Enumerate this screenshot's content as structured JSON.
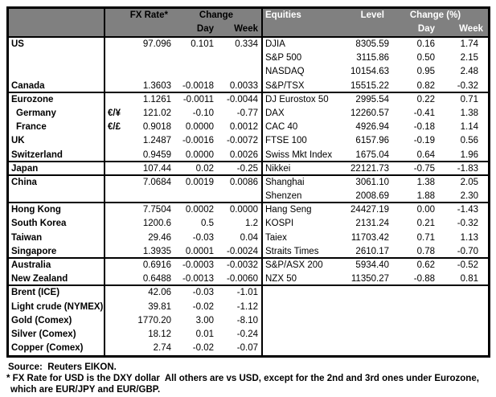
{
  "colors": {
    "header_bg": "#808080",
    "header_left_text": "#000000",
    "header_right_text": "#ffffff",
    "border": "#000000"
  },
  "header": {
    "left": {
      "fx_rate": "FX Rate*",
      "change": "Change",
      "day": "Day",
      "week": "Week"
    },
    "right": {
      "equities": "Equities",
      "level": "Level",
      "change_pct": "Change (%)",
      "day": "Day",
      "week": "Week"
    }
  },
  "rows": [
    {
      "label": "US",
      "sym": "",
      "fx": "97.096",
      "fx_day": "0.101",
      "fx_week": "0.334",
      "eq": "DJIA",
      "level": "8305.59",
      "eq_day": "0.16",
      "eq_week": "1.74",
      "indent": false,
      "sep": false
    },
    {
      "label": "",
      "sym": "",
      "fx": "",
      "fx_day": "",
      "fx_week": "",
      "eq": "S&P 500",
      "level": "3115.86",
      "eq_day": "0.50",
      "eq_week": "2.15",
      "indent": false,
      "sep": false
    },
    {
      "label": "",
      "sym": "",
      "fx": "",
      "fx_day": "",
      "fx_week": "",
      "eq": "NASDAQ",
      "level": "10154.63",
      "eq_day": "0.95",
      "eq_week": "2.48",
      "indent": false,
      "sep": false
    },
    {
      "label": "Canada",
      "sym": "",
      "fx": "1.3603",
      "fx_day": "-0.0018",
      "fx_week": "0.0033",
      "eq": "S&P/TSX",
      "level": "15515.22",
      "eq_day": "0.82",
      "eq_week": "-0.32",
      "indent": false,
      "sep": true
    },
    {
      "label": "Eurozone",
      "sym": "",
      "fx": "1.1261",
      "fx_day": "-0.0011",
      "fx_week": "-0.0044",
      "eq": "DJ Eurostox 50",
      "level": "2995.54",
      "eq_day": "0.22",
      "eq_week": "0.71",
      "indent": false,
      "sep": false
    },
    {
      "label": "Germany",
      "sym": "€/¥",
      "fx": "121.02",
      "fx_day": "-0.10",
      "fx_week": "-0.77",
      "eq": "DAX",
      "level": "12260.57",
      "eq_day": "-0.41",
      "eq_week": "1.38",
      "indent": true,
      "sep": false
    },
    {
      "label": "France",
      "sym": "€/£",
      "fx": "0.9018",
      "fx_day": "0.0000",
      "fx_week": "0.0012",
      "eq": "CAC 40",
      "level": "4926.94",
      "eq_day": "-0.18",
      "eq_week": "1.14",
      "indent": true,
      "sep": false
    },
    {
      "label": "UK",
      "sym": "",
      "fx": "1.2487",
      "fx_day": "-0.0016",
      "fx_week": "-0.0072",
      "eq": "FTSE 100",
      "level": "6157.96",
      "eq_day": "-0.19",
      "eq_week": "0.56",
      "indent": false,
      "sep": false
    },
    {
      "label": "Switzerland",
      "sym": "",
      "fx": "0.9459",
      "fx_day": "0.0000",
      "fx_week": "0.0026",
      "eq": "Swiss Mkt Index",
      "level": "1675.04",
      "eq_day": "0.64",
      "eq_week": "1.96",
      "indent": false,
      "sep": true
    },
    {
      "label": "Japan",
      "sym": "",
      "fx": "107.44",
      "fx_day": "0.02",
      "fx_week": "-0.25",
      "eq": "Nikkei",
      "level": "22121.73",
      "eq_day": "-0.75",
      "eq_week": "-1.83",
      "indent": false,
      "sep": true
    },
    {
      "label": "China",
      "sym": "",
      "fx": "7.0684",
      "fx_day": "0.0019",
      "fx_week": "0.0086",
      "eq": "Shanghai",
      "level": "3061.10",
      "eq_day": "1.38",
      "eq_week": "2.05",
      "indent": false,
      "sep": false
    },
    {
      "label": "",
      "sym": "",
      "fx": "",
      "fx_day": "",
      "fx_week": "",
      "eq": "Shenzen",
      "level": "2008.69",
      "eq_day": "1.88",
      "eq_week": "2.30",
      "indent": false,
      "sep": true
    },
    {
      "label": "Hong Kong",
      "sym": "",
      "fx": "7.7504",
      "fx_day": "0.0002",
      "fx_week": "0.0000",
      "eq": "Hang Seng",
      "level": "24427.19",
      "eq_day": "0.00",
      "eq_week": "-1.43",
      "indent": false,
      "sep": false
    },
    {
      "label": "South Korea",
      "sym": "",
      "fx": "1200.6",
      "fx_day": "0.5",
      "fx_week": "1.2",
      "eq": "KOSPI",
      "level": "2131.24",
      "eq_day": "0.21",
      "eq_week": "-0.32",
      "indent": false,
      "sep": false
    },
    {
      "label": "Taiwan",
      "sym": "",
      "fx": "29.46",
      "fx_day": "-0.03",
      "fx_week": "0.04",
      "eq": "Taiex",
      "level": "11703.42",
      "eq_day": "0.71",
      "eq_week": "1.13",
      "indent": false,
      "sep": false
    },
    {
      "label": "Singapore",
      "sym": "",
      "fx": "1.3935",
      "fx_day": "0.0001",
      "fx_week": "-0.0024",
      "eq": "Straits Times",
      "level": "2610.17",
      "eq_day": "0.78",
      "eq_week": "-0.70",
      "indent": false,
      "sep": true
    },
    {
      "label": "Australia",
      "sym": "",
      "fx": "0.6916",
      "fx_day": "-0.0003",
      "fx_week": "-0.0032",
      "eq": "S&P/ASX 200",
      "level": "5934.40",
      "eq_day": "0.62",
      "eq_week": "-0.52",
      "indent": false,
      "sep": false
    },
    {
      "label": "New Zealand",
      "sym": "",
      "fx": "0.6488",
      "fx_day": "-0.0013",
      "fx_week": "-0.0060",
      "eq": "NZX 50",
      "level": "11350.27",
      "eq_day": "-0.88",
      "eq_week": "0.81",
      "indent": false,
      "sep": true
    },
    {
      "label": "Brent (ICE)",
      "sym": "",
      "fx": "42.06",
      "fx_day": "-0.03",
      "fx_week": "-1.01",
      "eq": "",
      "level": "",
      "eq_day": "",
      "eq_week": "",
      "indent": false,
      "sep": false
    },
    {
      "label": "Light crude (NYMEX)",
      "sym": "",
      "fx": "39.81",
      "fx_day": "-0.02",
      "fx_week": "-1.12",
      "eq": "",
      "level": "",
      "eq_day": "",
      "eq_week": "",
      "indent": false,
      "sep": false
    },
    {
      "label": "Gold (Comex)",
      "sym": "",
      "fx": "1770.20",
      "fx_day": "3.00",
      "fx_week": "-8.10",
      "eq": "",
      "level": "",
      "eq_day": "",
      "eq_week": "",
      "indent": false,
      "sep": false
    },
    {
      "label": "Silver (Comex)",
      "sym": "",
      "fx": "18.12",
      "fx_day": "0.01",
      "fx_week": "-0.24",
      "eq": "",
      "level": "",
      "eq_day": "",
      "eq_week": "",
      "indent": false,
      "sep": false
    },
    {
      "label": "Copper (Comex)",
      "sym": "",
      "fx": "2.74",
      "fx_day": "-0.02",
      "fx_week": "-0.07",
      "eq": "",
      "level": "",
      "eq_day": "",
      "eq_week": "",
      "indent": false,
      "sep": false
    }
  ],
  "footer": {
    "source": "Source:  Reuters EIKON.",
    "note_line1": "* FX Rate for USD is the DXY dollar  All others are vs USD, except for the 2nd and 3rd ones under Eurozone,",
    "note_line2": "which are EUR/JPY and EUR/GBP."
  }
}
